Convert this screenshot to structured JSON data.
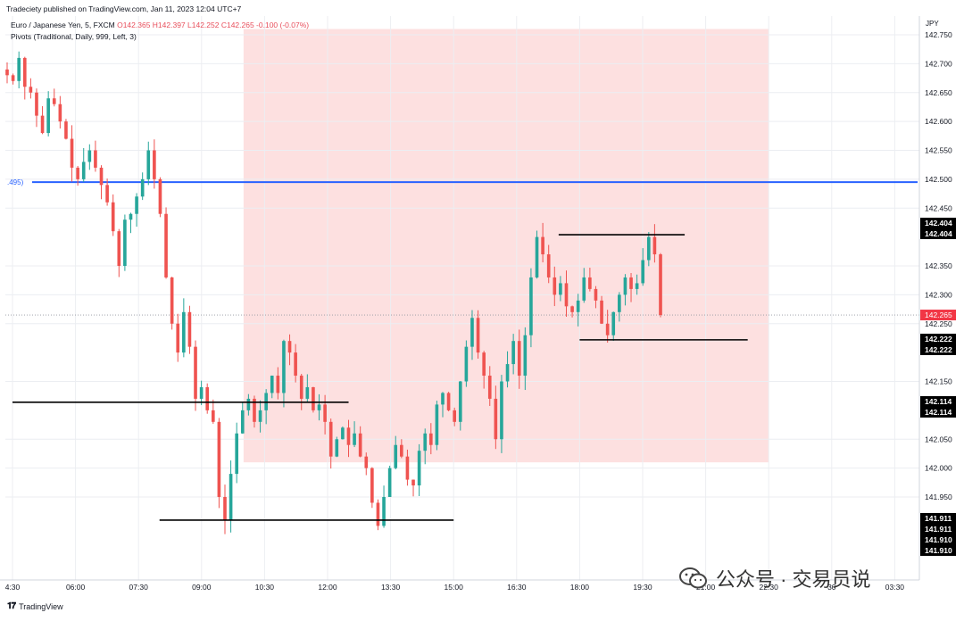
{
  "header": {
    "publisher": "Tradeciety published on TradingView.com, Jan 11, 2023 12:04 UTC+7",
    "symbol": "Euro / Japanese Yen, 5, FXCM",
    "ohlc": "O142.365  H142.397  L142.252  C142.265  -0.100 (-0.07%)",
    "indicator": "Pivots (Traditional, Daily, 999, Left, 3)"
  },
  "footer": {
    "brand": "TradingView"
  },
  "watermark": {
    "text": "公众号 · 交易员说"
  },
  "currency": "JPY",
  "colors": {
    "up": "#26a69a",
    "down": "#ef5350",
    "pivot_line": "#2962ff",
    "zone_fill": "#fde0e0",
    "price_tag": "#f23645",
    "level_tag": "#000000"
  },
  "chart_data": {
    "type": "candlestick",
    "title": "",
    "xlabel": "",
    "ylabel": "",
    "ylim": [
      141.86,
      142.76
    ],
    "grid": true,
    "x_ticks": [
      "4:30",
      "06:00",
      "07:30",
      "09:00",
      "10:30",
      "12:00",
      "13:30",
      "15:00",
      "16:30",
      "18:00",
      "19:30",
      "21:00",
      "22:30",
      "30",
      "03:30"
    ],
    "y_ticks": [
      "142.750",
      "142.700",
      "142.650",
      "142.600",
      "142.550",
      "142.500",
      "142.450",
      "142.350",
      "142.300",
      "142.250",
      "142.150",
      "142.050",
      "142.000",
      "141.950"
    ],
    "pivot_line": {
      "value": 142.495,
      "label": ".495)"
    },
    "current_price": {
      "value": 142.265,
      "label": "142.265"
    },
    "highlight_zone": {
      "x_start": "10:00",
      "x_end": "22:30",
      "y_low": 142.01,
      "y_high": 142.76
    },
    "levels": [
      {
        "value": 142.404,
        "x_start": "17:30",
        "x_end": "20:30"
      },
      {
        "value": 142.222,
        "x_start": "18:00",
        "x_end": "22:00"
      },
      {
        "value": 142.114,
        "x_start": "04:30",
        "x_end": "12:30"
      },
      {
        "value": 141.91,
        "x_start": "08:00",
        "x_end": "15:00"
      }
    ],
    "price_tags": [
      "142.404",
      "142.404",
      "142.222",
      "142.222",
      "142.114",
      "142.114",
      "141.911",
      "141.911",
      "141.910",
      "141.910"
    ],
    "candles_close_path": [
      142.68,
      142.67,
      142.71,
      142.66,
      142.65,
      142.61,
      142.58,
      142.64,
      142.63,
      142.6,
      142.57,
      142.52,
      142.5,
      142.53,
      142.55,
      142.52,
      142.49,
      142.46,
      142.41,
      142.35,
      142.43,
      142.44,
      142.47,
      142.5,
      142.55,
      142.5,
      142.44,
      142.33,
      142.25,
      142.2,
      142.27,
      142.21,
      142.12,
      142.14,
      142.1,
      142.08,
      141.95,
      141.91,
      141.99,
      142.06,
      142.1,
      142.12,
      142.08,
      142.1,
      142.13,
      142.16,
      142.13,
      142.22,
      142.2,
      142.16,
      142.12,
      142.14,
      142.1,
      142.11,
      142.08,
      142.02,
      142.05,
      142.07,
      142.04,
      142.06,
      142.02,
      142.0,
      141.94,
      141.9,
      141.95,
      142.0,
      142.04,
      142.02,
      141.98,
      141.97,
      142.03,
      142.06,
      142.04,
      142.11,
      142.13,
      142.1,
      142.08,
      142.15,
      142.21,
      142.26,
      142.2,
      142.16,
      142.12,
      142.05,
      142.15,
      142.18,
      142.22,
      142.16,
      142.23,
      142.33,
      142.4,
      142.37,
      142.33,
      142.3,
      142.32,
      142.28,
      142.27,
      142.29,
      142.33,
      142.31,
      142.29,
      142.25,
      142.23,
      142.27,
      142.3,
      142.33,
      142.31,
      142.32,
      142.36,
      142.4,
      142.37,
      142.265
    ]
  }
}
